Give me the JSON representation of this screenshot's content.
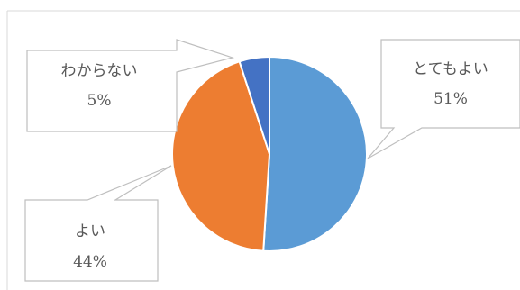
{
  "chart_data": {
    "type": "pie",
    "title": "",
    "slices": [
      {
        "label": "とてもよい",
        "value": 51,
        "value_text": "51%",
        "color": "#5B9BD5"
      },
      {
        "label": "よい",
        "value": 44,
        "value_text": "44%",
        "color": "#ED7D31"
      },
      {
        "label": "わからない",
        "value": 5,
        "value_text": "5%",
        "color": "#4472C4"
      }
    ],
    "data_label_style": "callout",
    "legend": "none",
    "start_angle_deg": 0,
    "direction": "clockwise"
  }
}
